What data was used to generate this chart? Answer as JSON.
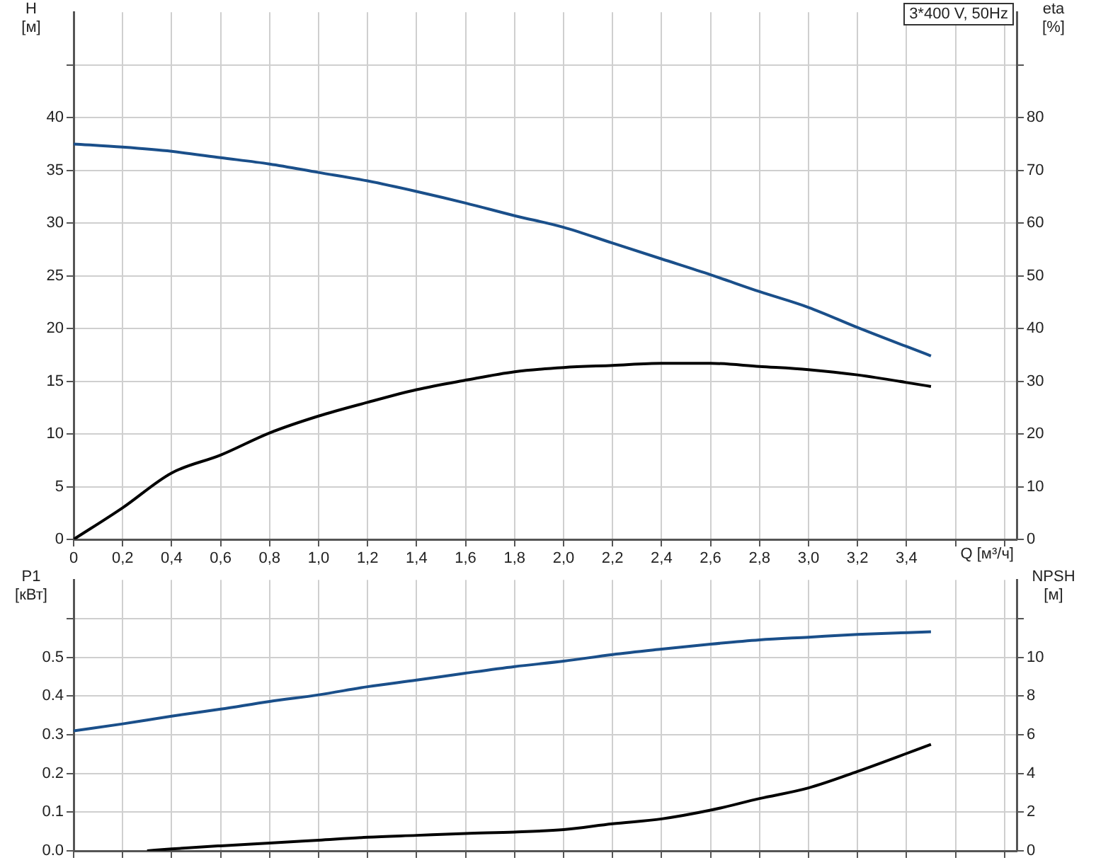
{
  "chart_data": [
    {
      "type": "line",
      "annotations": [
        "3*400 V, 50Hz"
      ],
      "xlabel": "Q [м³/ч]",
      "ylabel": "H [м]",
      "y2label": "eta [%]",
      "xlim": [
        0,
        3.85
      ],
      "xticks": [
        0,
        {
          "value": 0.2,
          "label": "0,2"
        },
        {
          "value": 0.4,
          "label": "0,4"
        },
        {
          "value": 0.6,
          "label": "0,6"
        },
        {
          "value": 0.8,
          "label": "0,8"
        },
        {
          "value": 1.0,
          "label": "1,0"
        },
        {
          "value": 1.2,
          "label": "1,2"
        },
        {
          "value": 1.4,
          "label": "1,4"
        },
        {
          "value": 1.6,
          "label": "1,6"
        },
        {
          "value": 1.8,
          "label": "1,8"
        },
        {
          "value": 2.0,
          "label": "2,0"
        },
        {
          "value": 2.2,
          "label": "2,2"
        },
        {
          "value": 2.4,
          "label": "2,4"
        },
        {
          "value": 2.6,
          "label": "2,6"
        },
        {
          "value": 2.8,
          "label": "2,8"
        },
        {
          "value": 3.0,
          "label": "3,0"
        },
        {
          "value": 3.2,
          "label": "3,2"
        },
        {
          "value": 3.4,
          "label": "3,4"
        },
        {
          "value": 3.6,
          "label": null
        },
        {
          "value": 3.8,
          "label": null
        }
      ],
      "ylim": [
        0,
        50
      ],
      "yticks": [
        0,
        5,
        10,
        15,
        20,
        25,
        30,
        35,
        40,
        {
          "value": 45,
          "label": null
        }
      ],
      "y2lim": [
        0,
        100
      ],
      "y2ticks": [
        0,
        10,
        20,
        30,
        40,
        50,
        60,
        70,
        80,
        {
          "value": 90,
          "label": null
        }
      ],
      "grid": true,
      "legend": false,
      "marker": "none",
      "line_style": "solid",
      "series": [
        {
          "color": "#1a4f8a",
          "x": [
            0,
            0.2,
            0.4,
            0.6,
            0.8,
            1.0,
            1.2,
            1.4,
            1.6,
            1.8,
            2.0,
            2.2,
            2.4,
            2.6,
            2.8,
            3.0,
            3.2,
            3.5
          ],
          "values": [
            37.5,
            37.2,
            36.8,
            36.2,
            35.6,
            34.8,
            34.0,
            33.0,
            31.9,
            30.7,
            29.6,
            28.1,
            26.6,
            25.1,
            23.5,
            22.0,
            20.1,
            17.4
          ]
        },
        {
          "color": "#000000",
          "axis": "y2",
          "x": [
            0,
            0.2,
            0.4,
            0.6,
            0.8,
            1.0,
            1.2,
            1.4,
            1.6,
            1.8,
            2.0,
            2.2,
            2.4,
            2.6,
            2.8,
            3.0,
            3.2,
            3.5
          ],
          "values": [
            0,
            6,
            12.6,
            16,
            20.2,
            23.4,
            26,
            28.4,
            30.2,
            31.8,
            32.6,
            33,
            33.4,
            33.4,
            32.8,
            32.2,
            31.2,
            29
          ]
        }
      ]
    },
    {
      "type": "line",
      "ylabel": "P1 [кВт]",
      "y2label": "NPSH [м]",
      "tick_labels": "y",
      "xlim": [
        0,
        3.85
      ],
      "xticks": [
        0,
        0.2,
        0.4,
        0.6,
        0.8,
        1.0,
        1.2,
        1.4,
        1.6,
        1.8,
        2.0,
        2.2,
        2.4,
        2.6,
        2.8,
        3.0,
        3.2,
        3.4,
        3.6,
        3.8
      ],
      "ylim": [
        0,
        0.7
      ],
      "yticks": [
        {
          "value": 0,
          "label": "0.0"
        },
        0.1,
        0.2,
        0.3,
        0.4,
        0.5,
        {
          "value": 0.6,
          "label": null
        }
      ],
      "y2lim": [
        0,
        14
      ],
      "y2ticks": [
        0,
        2,
        4,
        6,
        8,
        10,
        {
          "value": 12,
          "label": null
        }
      ],
      "grid": true,
      "legend": false,
      "marker": "none",
      "line_style": "solid",
      "series": [
        {
          "color": "#1a4f8a",
          "x": [
            0,
            0.2,
            0.4,
            0.6,
            0.8,
            1.0,
            1.2,
            1.4,
            1.6,
            1.8,
            2.0,
            2.2,
            2.4,
            2.6,
            2.8,
            3.0,
            3.2,
            3.5
          ],
          "values": [
            0.31,
            0.328,
            0.348,
            0.366,
            0.386,
            0.403,
            0.424,
            0.441,
            0.459,
            0.476,
            0.49,
            0.507,
            0.521,
            0.534,
            0.545,
            0.552,
            0.559,
            0.566
          ]
        },
        {
          "color": "#000000",
          "axis": "y2",
          "x": [
            0.3,
            0.4,
            0.6,
            0.8,
            1.0,
            1.2,
            1.4,
            1.6,
            1.8,
            2.0,
            2.2,
            2.4,
            2.6,
            2.8,
            3.0,
            3.2,
            3.5
          ],
          "values": [
            0,
            0.1,
            0.26,
            0.4,
            0.55,
            0.7,
            0.8,
            0.9,
            0.97,
            1.1,
            1.4,
            1.65,
            2.1,
            2.7,
            3.25,
            4.1,
            5.5
          ]
        }
      ]
    }
  ]
}
